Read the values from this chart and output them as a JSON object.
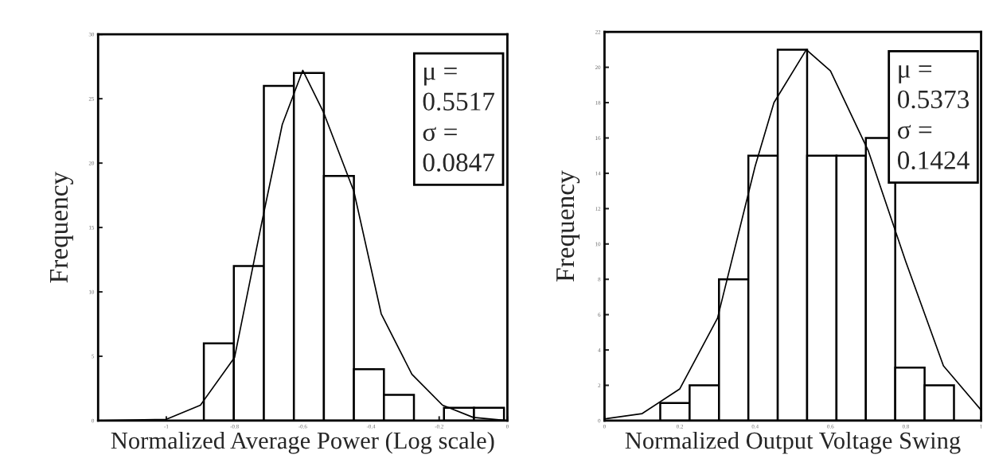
{
  "chart_data": [
    {
      "type": "histogram",
      "xlabel": "Normalized Average Power (Log scale)",
      "ylabel": "Frequency",
      "bins": [
        -0.89,
        -0.802,
        -0.714,
        -0.626,
        -0.538,
        -0.45,
        -0.362,
        -0.274,
        -0.186,
        -0.098,
        -0.01
      ],
      "values": [
        6,
        12,
        26,
        27,
        19,
        4,
        2,
        0,
        1,
        1
      ],
      "color": "#ffffff",
      "series": [
        {
          "type": "line",
          "color": "#000000",
          "x": [
            -1.2,
            -1.0,
            -0.9,
            -0.8,
            -0.72,
            -0.66,
            -0.6,
            -0.54,
            -0.45,
            -0.37,
            -0.28,
            -0.19,
            -0.1,
            0.0
          ],
          "values": [
            0,
            0.1,
            1.2,
            4.9,
            15.4,
            23,
            27.2,
            24,
            17.8,
            8.3,
            3.6,
            1.2,
            0.25,
            0
          ]
        }
      ],
      "xlim": [
        -1.2,
        0
      ],
      "ylim": [
        0,
        30
      ],
      "xticks": [
        -1,
        -0.8,
        -0.6,
        -0.4,
        -0.2,
        0
      ],
      "yticks": [
        0,
        5,
        10,
        15,
        20,
        25,
        30
      ],
      "grid": false,
      "annotations": [
        "μ =\n0.5517\nσ =\n0.0847"
      ]
    },
    {
      "type": "histogram",
      "xlabel": "Normalized Output Voltage Swing",
      "ylabel": "Frequency",
      "bins": [
        0.148,
        0.226,
        0.304,
        0.382,
        0.46,
        0.538,
        0.616,
        0.694,
        0.772,
        0.85,
        0.928
      ],
      "values": [
        1,
        2,
        8,
        15,
        21,
        15,
        15,
        16,
        3,
        2
      ],
      "color": "#ffffff",
      "series": [
        {
          "type": "line",
          "color": "#000000",
          "x": [
            0,
            0.1,
            0.2,
            0.3,
            0.4,
            0.45,
            0.536,
            0.6,
            0.7,
            0.8,
            0.9,
            1.0
          ],
          "values": [
            0.1,
            0.4,
            1.8,
            5.8,
            14.4,
            18,
            21,
            19.8,
            15.3,
            9,
            3.1,
            0.6
          ]
        }
      ],
      "xlim": [
        0,
        1
      ],
      "ylim": [
        0,
        22
      ],
      "xticks": [
        0,
        0.2,
        0.4,
        0.6,
        0.8,
        1
      ],
      "yticks": [
        0,
        2,
        4,
        6,
        8,
        10,
        12,
        14,
        16,
        18,
        20,
        22
      ],
      "grid": false,
      "annotations": [
        "μ =\n0.5373\nσ =\n0.1424"
      ]
    }
  ]
}
